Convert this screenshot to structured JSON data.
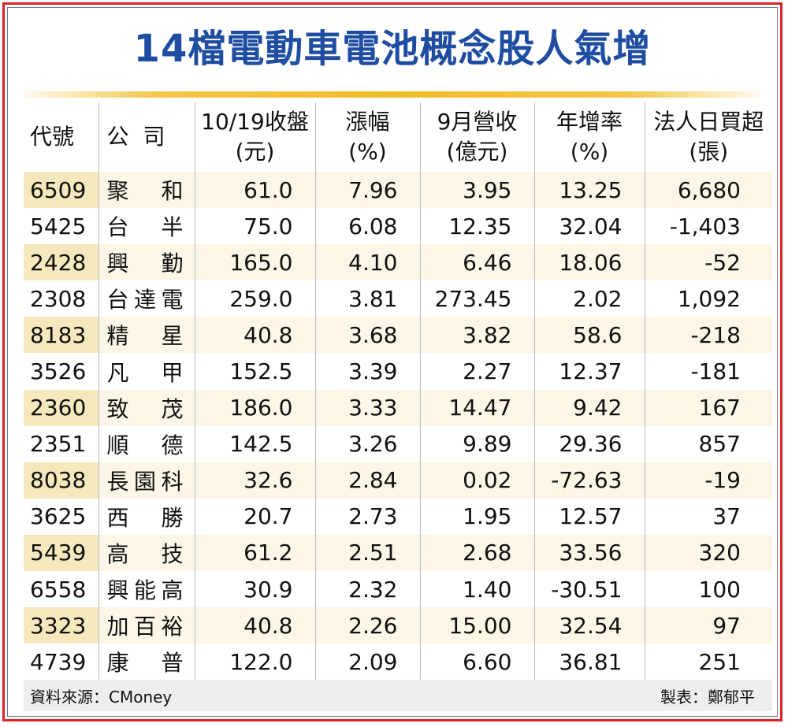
{
  "title": "14檔電動車電池概念股人氣增",
  "headers": {
    "code": "代號",
    "company": "公司",
    "close_line1": "10/19收盤",
    "close_line2": "(元)",
    "change_line1": "漲幅",
    "change_line2": "(%)",
    "revenue_line1": "9月營收",
    "revenue_line2": "(億元)",
    "yoy_line1": "年增率",
    "yoy_line2": "(%)",
    "inst_line1": "法人日買超",
    "inst_line2": "(張)"
  },
  "rows": [
    {
      "code": "6509",
      "name": "聚和",
      "close": "61.0",
      "change": "7.96",
      "revenue": "3.95",
      "yoy": "13.25",
      "inst": "6,680"
    },
    {
      "code": "5425",
      "name": "台半",
      "close": "75.0",
      "change": "6.08",
      "revenue": "12.35",
      "yoy": "32.04",
      "inst": "-1,403"
    },
    {
      "code": "2428",
      "name": "興勤",
      "close": "165.0",
      "change": "4.10",
      "revenue": "6.46",
      "yoy": "18.06",
      "inst": "-52"
    },
    {
      "code": "2308",
      "name": "台達電",
      "close": "259.0",
      "change": "3.81",
      "revenue": "273.45",
      "yoy": "2.02",
      "inst": "1,092"
    },
    {
      "code": "8183",
      "name": "精星",
      "close": "40.8",
      "change": "3.68",
      "revenue": "3.82",
      "yoy": "58.6",
      "inst": "-218"
    },
    {
      "code": "3526",
      "name": "凡甲",
      "close": "152.5",
      "change": "3.39",
      "revenue": "2.27",
      "yoy": "12.37",
      "inst": "-181"
    },
    {
      "code": "2360",
      "name": "致茂",
      "close": "186.0",
      "change": "3.33",
      "revenue": "14.47",
      "yoy": "9.42",
      "inst": "167"
    },
    {
      "code": "2351",
      "name": "順德",
      "close": "142.5",
      "change": "3.26",
      "revenue": "9.89",
      "yoy": "29.36",
      "inst": "857"
    },
    {
      "code": "8038",
      "name": "長園科",
      "close": "32.6",
      "change": "2.84",
      "revenue": "0.02",
      "yoy": "-72.63",
      "inst": "-19"
    },
    {
      "code": "3625",
      "name": "西勝",
      "close": "20.7",
      "change": "2.73",
      "revenue": "1.95",
      "yoy": "12.57",
      "inst": "37"
    },
    {
      "code": "5439",
      "name": "高技",
      "close": "61.2",
      "change": "2.51",
      "revenue": "2.68",
      "yoy": "33.56",
      "inst": "320"
    },
    {
      "code": "6558",
      "name": "興能高",
      "close": "30.9",
      "change": "2.32",
      "revenue": "1.40",
      "yoy": "-30.51",
      "inst": "100"
    },
    {
      "code": "3323",
      "name": "加百裕",
      "close": "40.8",
      "change": "2.26",
      "revenue": "15.00",
      "yoy": "32.54",
      "inst": "97"
    },
    {
      "code": "4739",
      "name": "康普",
      "close": "122.0",
      "change": "2.09",
      "revenue": "6.60",
      "yoy": "36.81",
      "inst": "251"
    }
  ],
  "footer": {
    "source": "資料來源：CMoney",
    "maker": "製表：鄭郁平"
  },
  "colors": {
    "title": "#1e4da1",
    "frame": "#d8232a",
    "rule": "#efbd2a",
    "row_tint": "#fbf6e6",
    "code_tint": "#f6e8bd"
  }
}
